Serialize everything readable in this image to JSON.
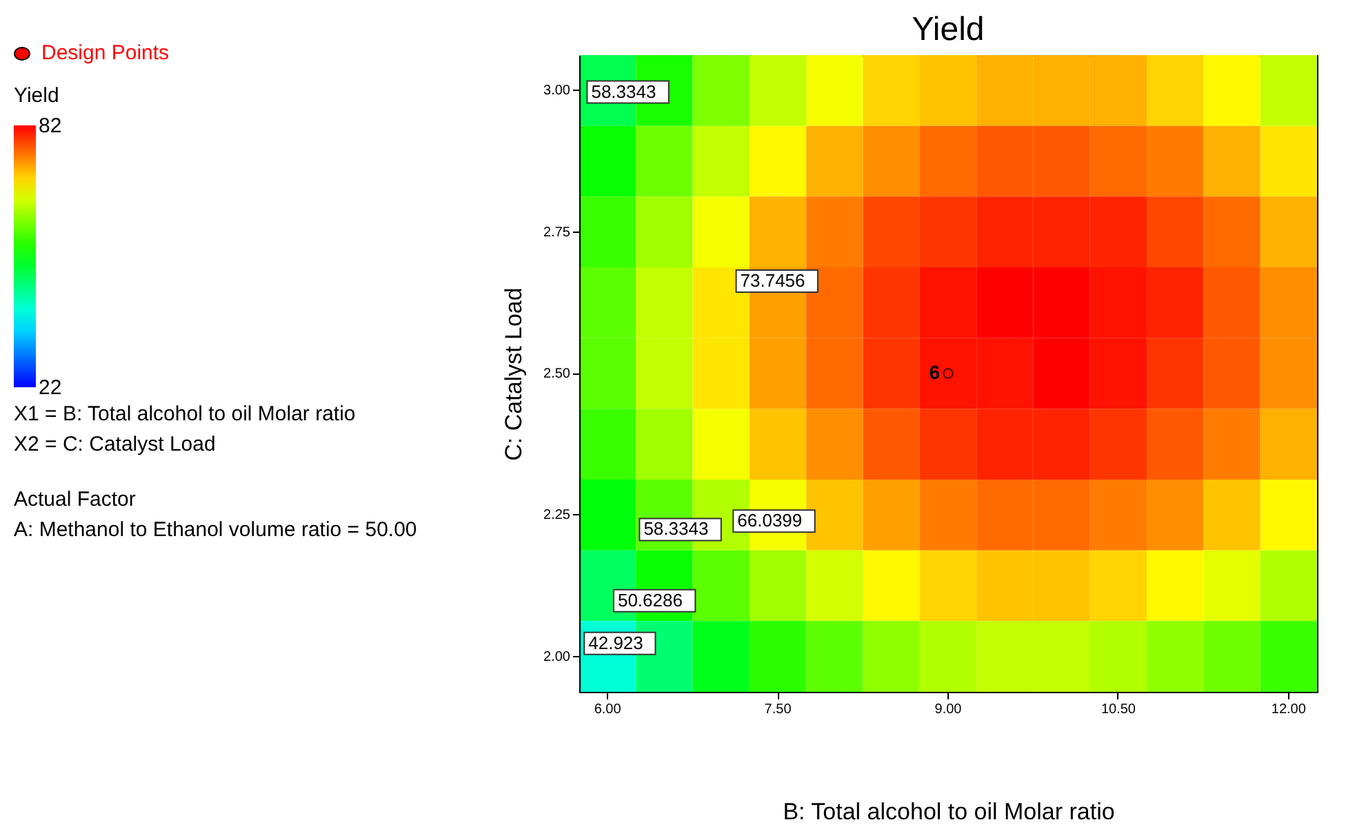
{
  "chart_data": {
    "type": "heatmap",
    "title": "Yield",
    "xlabel": "B: Total alcohol to oil Molar ratio",
    "ylabel": "C: Catalyst Load",
    "clabel": "Yield",
    "categories": [
      "6.00",
      null,
      null,
      "7.50",
      null,
      null,
      "9.00",
      null,
      null,
      "10.50",
      null,
      null,
      "12.00"
    ],
    "y_categories": [
      "3.00",
      null,
      "2.75",
      null,
      "2.50",
      null,
      "2.25",
      null,
      "2.00"
    ],
    "cells": [
      [
        48,
        54,
        60,
        64,
        67,
        70,
        71,
        72,
        72,
        72,
        70,
        68,
        64
      ],
      [
        53,
        59,
        64,
        68,
        72,
        74,
        76,
        77,
        77,
        76,
        75,
        72,
        69
      ],
      [
        56,
        62,
        67,
        72,
        75,
        78,
        79,
        80,
        80,
        80,
        78,
        76,
        72
      ],
      [
        58,
        64,
        69,
        73,
        76,
        79,
        81,
        82,
        82,
        81,
        80,
        77,
        74
      ],
      [
        58,
        64,
        69,
        73,
        76,
        79,
        81,
        81,
        82,
        81,
        79,
        77,
        74
      ],
      [
        56,
        62,
        67,
        71,
        74,
        77,
        79,
        80,
        80,
        79,
        77,
        75,
        72
      ],
      [
        52,
        58,
        63,
        67,
        71,
        73,
        75,
        76,
        76,
        75,
        74,
        71,
        68
      ],
      [
        47,
        53,
        58,
        62,
        65,
        68,
        70,
        71,
        71,
        70,
        68,
        66,
        63
      ],
      [
        40,
        46,
        51,
        55,
        58,
        61,
        63,
        64,
        64,
        63,
        61,
        59,
        56
      ]
    ],
    "clim": [
      22,
      82
    ],
    "cticks": [
      22,
      82
    ],
    "annotations": [
      "Design Points",
      "X1 = B: Total alcohol to oil Molar ratio",
      "X2 = C: Catalyst Load",
      "Actual Factor",
      "A: Methanol to Ethanol volume ratio  = 50.00",
      {
        "text": "6",
        "x": "9.00",
        "y": "2.50"
      },
      "58.3343",
      "73.7456",
      "66.0399",
      "58.3343",
      "50.6286",
      "42.923"
    ]
  }
}
